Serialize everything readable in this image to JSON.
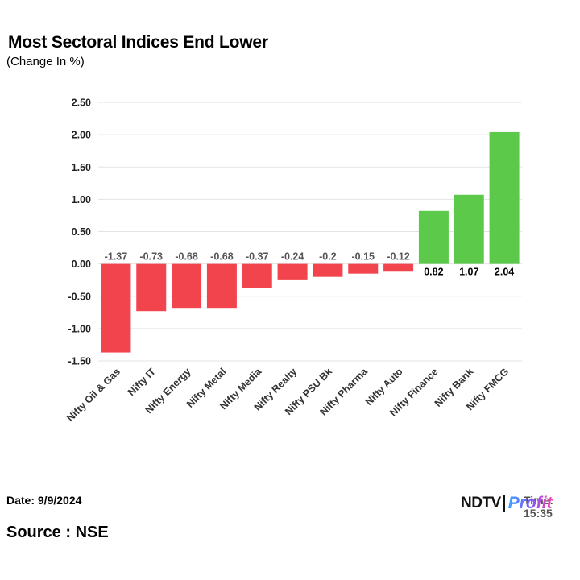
{
  "chart_data": {
    "type": "bar",
    "title": "Most Sectoral Indices End Lower",
    "subtitle": "(Change In %)",
    "xlabel": "",
    "ylabel": "",
    "ylim": [
      -1.5,
      2.5
    ],
    "yticks": [
      "2.50",
      "2.00",
      "1.50",
      "1.00",
      "0.50",
      "0.00",
      "-0.50",
      "-1.00",
      "-1.50"
    ],
    "ytick_values": [
      2.5,
      2.0,
      1.5,
      1.0,
      0.5,
      0.0,
      -0.5,
      -1.0,
      -1.5
    ],
    "grid": true,
    "categories": [
      "Nifty Oil & Gas",
      "Nifty IT",
      "Nifty Energy",
      "Nifty Metal",
      "Nifty Media",
      "Nifty Realty",
      "Nifty PSU Bk",
      "Nifty Pharma",
      "Nifty Auto",
      "Nifty Finance",
      "Nifty Bank",
      "Nifty FMCG"
    ],
    "values": [
      -1.37,
      -0.73,
      -0.68,
      -0.68,
      -0.37,
      -0.24,
      -0.2,
      -0.15,
      -0.12,
      0.82,
      1.07,
      2.04
    ],
    "value_labels": [
      "-1.37",
      "-0.73",
      "-0.68",
      "-0.68",
      "-0.37",
      "-0.24",
      "-0.2",
      "-0.15",
      "-0.12",
      "0.82",
      "1.07",
      "2.04"
    ],
    "colors": {
      "negative": "#f2444d",
      "positive": "#5cc94a",
      "grid": "#e3e3e3",
      "negative_label": "#555555",
      "positive_label": "#000000"
    }
  },
  "footer": {
    "date": "Date: 9/9/2024",
    "time": "Time: 15:35",
    "source": "Source : NSE"
  },
  "logo": {
    "part1": "NDTV",
    "part2": "Profit"
  }
}
